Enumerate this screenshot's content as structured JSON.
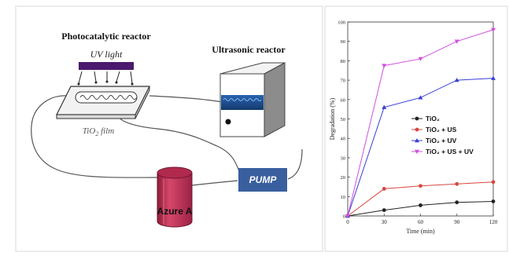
{
  "diagram": {
    "photo_reactor_label": "Photocatalytic reactor",
    "uv_light_label": "UV light",
    "tio2_film_label": "TiO",
    "tio2_film_sub": "2",
    "tio2_film_suffix": " film",
    "ultrasonic_reactor_label": "Ultrasonic  reactor",
    "pump_label": "PUMP",
    "tank_label": "Azure A",
    "colors": {
      "uv_bar": "#4a1a6e",
      "tank": "#c8345a",
      "pump": "#3a5f9e",
      "ultrasonic_band": "#1e4d8c"
    }
  },
  "chart_data": {
    "type": "line",
    "ylabel": "Degradation (%)",
    "xlabel": "Time (min)",
    "xlim": [
      0,
      120
    ],
    "ylim": [
      0,
      100
    ],
    "x_ticks": [
      0,
      30,
      60,
      90,
      120
    ],
    "y_ticks": [
      0,
      10,
      20,
      30,
      40,
      50,
      60,
      70,
      80,
      90,
      100
    ],
    "legend_position": "right",
    "series": [
      {
        "name": "TiO₂",
        "color": "#222222",
        "marker": "circle",
        "x": [
          0,
          30,
          60,
          90,
          120
        ],
        "values": [
          0,
          3,
          5.5,
          7,
          7.5
        ]
      },
      {
        "name": "TiO₂ + US",
        "color": "#d9463e",
        "marker": "circle",
        "x": [
          0,
          30,
          60,
          90,
          120
        ],
        "values": [
          0,
          14,
          15.5,
          16.5,
          17.5
        ]
      },
      {
        "name": "TiO₂ + UV",
        "color": "#3a3fd6",
        "marker": "triangle",
        "x": [
          0,
          30,
          60,
          90,
          120
        ],
        "values": [
          0,
          56,
          61,
          70,
          71
        ]
      },
      {
        "name": "TiO₂ + US + UV",
        "color": "#d24fe0",
        "marker": "triangle-down",
        "x": [
          0,
          30,
          60,
          90,
          120
        ],
        "values": [
          0,
          77.5,
          81,
          90,
          96
        ]
      }
    ]
  }
}
